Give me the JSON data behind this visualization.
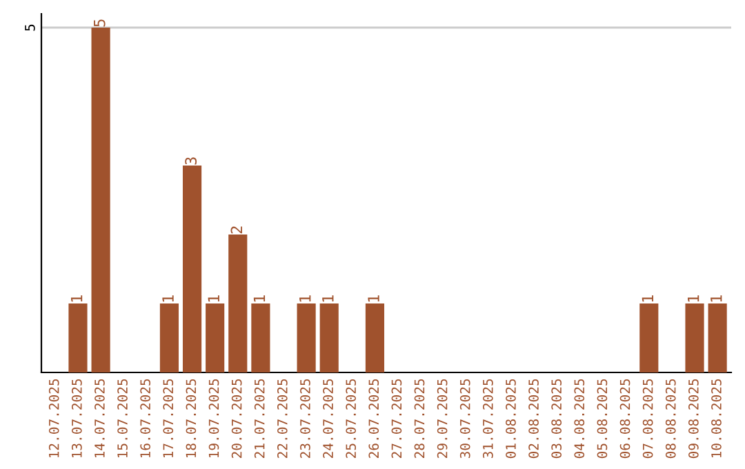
{
  "chart_data": {
    "type": "bar",
    "categories": [
      "12.07.2025",
      "13.07.2025",
      "14.07.2025",
      "15.07.2025",
      "16.07.2025",
      "17.07.2025",
      "18.07.2025",
      "19.07.2025",
      "20.07.2025",
      "21.07.2025",
      "22.07.2025",
      "23.07.2025",
      "24.07.2025",
      "25.07.2025",
      "26.07.2025",
      "27.07.2025",
      "28.07.2025",
      "29.07.2025",
      "30.07.2025",
      "31.07.2025",
      "01.08.2025",
      "02.08.2025",
      "03.08.2025",
      "04.08.2025",
      "05.08.2025",
      "06.08.2025",
      "07.08.2025",
      "08.08.2025",
      "09.08.2025",
      "10.08.2025"
    ],
    "values": [
      0,
      1,
      5,
      0,
      0,
      1,
      3,
      1,
      2,
      1,
      0,
      1,
      1,
      0,
      1,
      0,
      0,
      0,
      0,
      0,
      0,
      0,
      0,
      0,
      0,
      0,
      1,
      0,
      1,
      1
    ],
    "value_labels": [
      null,
      "1",
      "5",
      null,
      null,
      "1",
      "3",
      "1",
      "2",
      "1",
      null,
      "1",
      "1",
      null,
      "1",
      null,
      null,
      null,
      null,
      null,
      null,
      null,
      null,
      null,
      null,
      null,
      "1",
      null,
      "1",
      "1"
    ],
    "color": "#a0522d",
    "ylim": [
      0,
      5.2
    ],
    "yticks": [
      5
    ],
    "grid": "y",
    "legend": false
  }
}
